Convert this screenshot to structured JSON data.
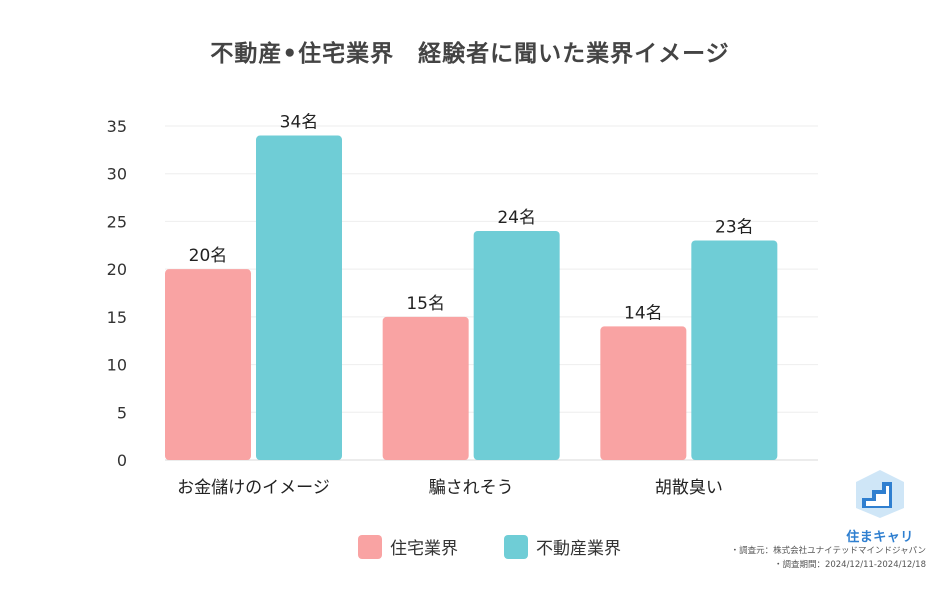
{
  "title": "不動産•住宅業界　経験者に聞いた業界イメージ",
  "chart_data": {
    "type": "bar",
    "title": "不動産•住宅業界　経験者に聞いた業界イメージ",
    "categories": [
      "お金儲けのイメージ",
      "騙されそう",
      "胡散臭い"
    ],
    "series": [
      {
        "name": "住宅業界",
        "values": [
          20,
          15,
          14
        ],
        "labels": [
          "20名",
          "15名",
          "14名"
        ],
        "color": "#f9a3a3"
      },
      {
        "name": "不動産業界",
        "values": [
          34,
          24,
          23
        ],
        "labels": [
          "34名",
          "24名",
          "23名"
        ],
        "color": "#6fcdd6"
      }
    ],
    "ylim": [
      0,
      35
    ],
    "yticks": [
      "0",
      "5",
      "10",
      "15",
      "20",
      "25",
      "30",
      "35"
    ],
    "grid": true,
    "legend_position": "bottom"
  },
  "logo": {
    "text": "住まキャリ",
    "color": "#2f7fd0"
  },
  "source": {
    "line1": "・調査元：株式会社ユナイテッドマインドジャパン",
    "line2": "・調査期間：2024/12/11-2024/12/18"
  }
}
